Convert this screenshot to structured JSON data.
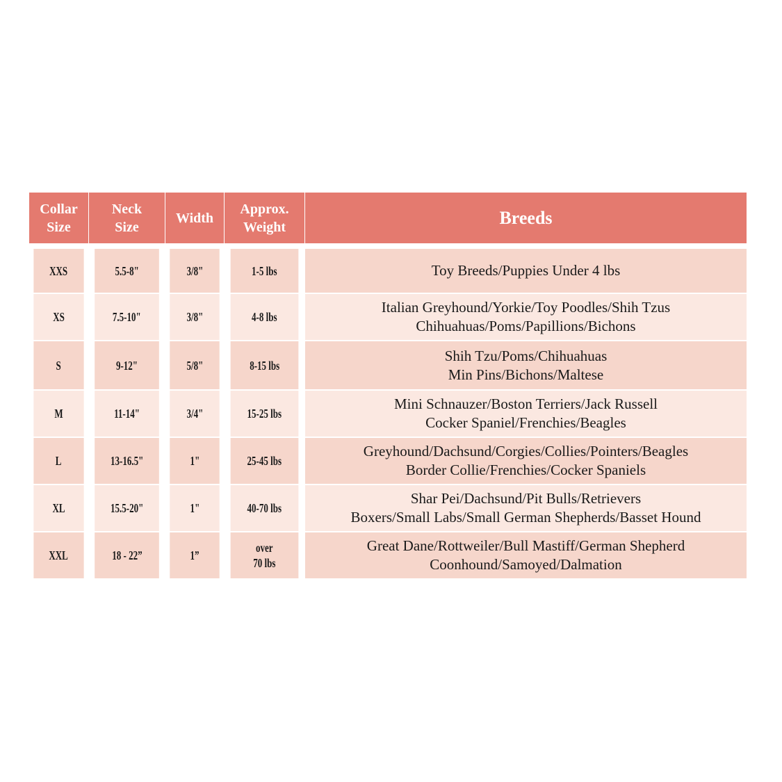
{
  "table": {
    "header": [
      [
        "Collar",
        "Size"
      ],
      [
        "Neck",
        "Size"
      ],
      [
        "Width"
      ],
      [
        "Approx.",
        "Weight"
      ],
      [
        "Breeds"
      ]
    ],
    "rows": [
      [
        [
          "XXS"
        ],
        [
          "5.5-8\""
        ],
        [
          "3/8\""
        ],
        [
          "1-5 lbs"
        ],
        [
          "Toy Breeds/Puppies Under 4 lbs"
        ]
      ],
      [
        [
          "XS"
        ],
        [
          "7.5-10\""
        ],
        [
          "3/8\""
        ],
        [
          "4-8 lbs"
        ],
        [
          "Italian Greyhound/Yorkie/Toy Poodles/Shih Tzus",
          "Chihuahuas/Poms/Papillions/Bichons"
        ]
      ],
      [
        [
          "S"
        ],
        [
          "9-12\""
        ],
        [
          "5/8\""
        ],
        [
          "8-15 lbs"
        ],
        [
          "Shih Tzu/Poms/Chihuahuas",
          "Min Pins/Bichons/Maltese"
        ]
      ],
      [
        [
          "M"
        ],
        [
          "11-14\""
        ],
        [
          "3/4\""
        ],
        [
          "15-25 lbs"
        ],
        [
          "Mini Schnauzer/Boston Terriers/Jack Russell",
          "Cocker Spaniel/Frenchies/Beagles"
        ]
      ],
      [
        [
          "L"
        ],
        [
          "13-16.5\""
        ],
        [
          "1\""
        ],
        [
          "25-45 lbs"
        ],
        [
          "Greyhound/Dachsund/Corgies/Collies/Pointers/Beagles",
          "Border Collie/Frenchies/Cocker Spaniels"
        ]
      ],
      [
        [
          "XL"
        ],
        [
          "15.5-20\""
        ],
        [
          "1\""
        ],
        [
          "40-70 lbs"
        ],
        [
          "Shar Pei/Dachsund/Pit Bulls/Retrievers",
          "Boxers/Small Labs/Small German Shepherds/Basset Hound"
        ]
      ],
      [
        [
          "XXL"
        ],
        [
          "18 - 22”"
        ],
        [
          "1”"
        ],
        [
          "over",
          "70 lbs"
        ],
        [
          "Great Dane/Rottweiler/Bull Mastiff/German Shepherd",
          "Coonhound/Samoyed/Dalmation"
        ]
      ]
    ]
  }
}
